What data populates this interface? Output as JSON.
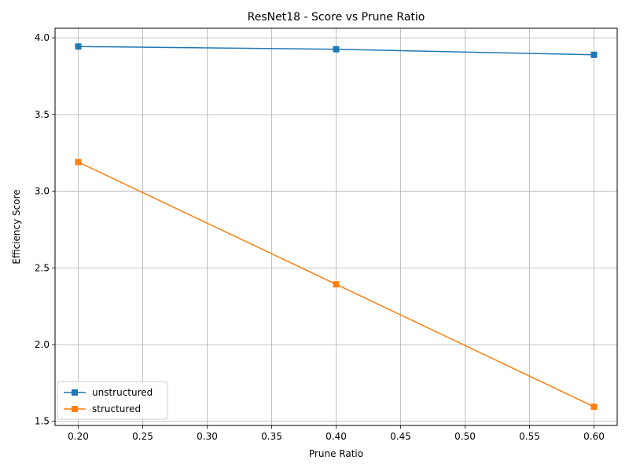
{
  "chart_data": {
    "type": "line",
    "title": "ResNet18 - Score vs Prune Ratio",
    "xlabel": "Prune Ratio",
    "ylabel": "Efficiency Score",
    "xlim": [
      0.182,
      0.618
    ],
    "ylim": [
      1.473,
      4.062
    ],
    "x_ticks": [
      0.2,
      0.25,
      0.3,
      0.35,
      0.4,
      0.45,
      0.5,
      0.55,
      0.6
    ],
    "x_tick_labels": [
      "0.20",
      "0.25",
      "0.30",
      "0.35",
      "0.40",
      "0.45",
      "0.50",
      "0.55",
      "0.60"
    ],
    "y_ticks": [
      1.5,
      2.0,
      2.5,
      3.0,
      3.5,
      4.0
    ],
    "y_tick_labels": [
      "1.5",
      "2.0",
      "2.5",
      "3.0",
      "3.5",
      "4.0"
    ],
    "grid": true,
    "legend_position": "lower-left",
    "x": [
      0.2,
      0.4,
      0.6
    ],
    "series": [
      {
        "name": "unstructured",
        "color": "#1f77b4",
        "marker": "square",
        "values": [
          3.943,
          3.925,
          3.889
        ]
      },
      {
        "name": "structured",
        "color": "#ff7f0e",
        "marker": "square",
        "values": [
          3.19,
          2.393,
          1.595
        ]
      }
    ]
  }
}
